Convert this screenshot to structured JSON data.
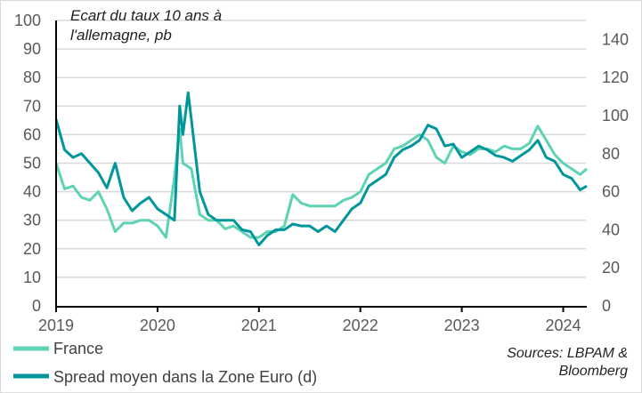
{
  "chart_data": {
    "type": "line",
    "title": "Ecart du taux 10 ans à l'allemagne, pb",
    "title_lines": [
      "Ecart du taux 10 ans à",
      "l'allemagne, pb"
    ],
    "x_tick_labels": [
      "2019",
      "2020",
      "2021",
      "2022",
      "2023",
      "2024"
    ],
    "y_left": {
      "range": [
        0,
        100
      ],
      "ticks": [
        "0",
        "10",
        "20",
        "30",
        "40",
        "50",
        "60",
        "70",
        "80",
        "90",
        "100"
      ]
    },
    "y_right": {
      "range": [
        0,
        150
      ],
      "ticks": [
        "0",
        "20",
        "40",
        "60",
        "80",
        "100",
        "120",
        "140"
      ]
    },
    "grid": "horizontal",
    "legend_placement": "bottom-left",
    "source": [
      "Sources: LBPAM &",
      "Bloomberg"
    ],
    "series": [
      {
        "name": "France",
        "axis": "left",
        "color": "#5dd3b4",
        "x": [
          "2019-01",
          "2019-02",
          "2019-03",
          "2019-04",
          "2019-05",
          "2019-06",
          "2019-07",
          "2019-08",
          "2019-09",
          "2019-10",
          "2019-11",
          "2019-12",
          "2020-01",
          "2020-02",
          "2020-03",
          "2020-03-20",
          "2020-04",
          "2020-05",
          "2020-06",
          "2020-07",
          "2020-08",
          "2020-09",
          "2020-10",
          "2020-11",
          "2020-12",
          "2021-01",
          "2021-02",
          "2021-03",
          "2021-04",
          "2021-05",
          "2021-06",
          "2021-07",
          "2021-08",
          "2021-09",
          "2021-10",
          "2021-11",
          "2021-12",
          "2022-01",
          "2022-02",
          "2022-03",
          "2022-04",
          "2022-05",
          "2022-06",
          "2022-07",
          "2022-08",
          "2022-09",
          "2022-10",
          "2022-11",
          "2022-12",
          "2023-01",
          "2023-02",
          "2023-03",
          "2023-04",
          "2023-05",
          "2023-06",
          "2023-07",
          "2023-08",
          "2023-09",
          "2023-10",
          "2023-11",
          "2023-12",
          "2024-01",
          "2024-02",
          "2024-03",
          "2024-03-25"
        ],
        "values": [
          50,
          41,
          42,
          38,
          37,
          40,
          34,
          26,
          29,
          29,
          30,
          30,
          28,
          24,
          45,
          62,
          50,
          48,
          32,
          30,
          30,
          27,
          28,
          26,
          24,
          24,
          26,
          26,
          28,
          39,
          36,
          35,
          35,
          35,
          35,
          37,
          38,
          40,
          46,
          48,
          50,
          55,
          56,
          58,
          60,
          58,
          52,
          50,
          56,
          54,
          53,
          55,
          55,
          54,
          56,
          55,
          55,
          57,
          63,
          58,
          53,
          50,
          48,
          46,
          48
        ]
      },
      {
        "name": "Spread moyen dans la Zone Euro (d)",
        "axis": "right",
        "color": "#00969b",
        "x": [
          "2019-01",
          "2019-02",
          "2019-03",
          "2019-04",
          "2019-05",
          "2019-06",
          "2019-07",
          "2019-08",
          "2019-09",
          "2019-10",
          "2019-11",
          "2019-12",
          "2020-01",
          "2020-02",
          "2020-03",
          "2020-03-20",
          "2020-04",
          "2020-04-20",
          "2020-05",
          "2020-06",
          "2020-07",
          "2020-08",
          "2020-09",
          "2020-10",
          "2020-11",
          "2020-12",
          "2021-01",
          "2021-02",
          "2021-03",
          "2021-04",
          "2021-05",
          "2021-06",
          "2021-07",
          "2021-08",
          "2021-09",
          "2021-10",
          "2021-11",
          "2021-12",
          "2022-01",
          "2022-02",
          "2022-03",
          "2022-04",
          "2022-05",
          "2022-06",
          "2022-07",
          "2022-08",
          "2022-09",
          "2022-10",
          "2022-11",
          "2022-12",
          "2023-01",
          "2023-02",
          "2023-03",
          "2023-04",
          "2023-05",
          "2023-06",
          "2023-07",
          "2023-08",
          "2023-09",
          "2023-10",
          "2023-11",
          "2023-12",
          "2024-01",
          "2024-02",
          "2024-03",
          "2024-03-25"
        ],
        "values": [
          98,
          82,
          78,
          80,
          75,
          70,
          62,
          75,
          57,
          50,
          54,
          57,
          51,
          48,
          45,
          105,
          90,
          112,
          98,
          60,
          48,
          45,
          45,
          45,
          40,
          39,
          32,
          37,
          40,
          40,
          43,
          42,
          42,
          39,
          42,
          39,
          45,
          51,
          54,
          63,
          66,
          69,
          78,
          82,
          84,
          87,
          95,
          93,
          84,
          85,
          78,
          81,
          84,
          82,
          79,
          78,
          76,
          79,
          82,
          87,
          78,
          76,
          69,
          67,
          61,
          63
        ]
      }
    ]
  }
}
